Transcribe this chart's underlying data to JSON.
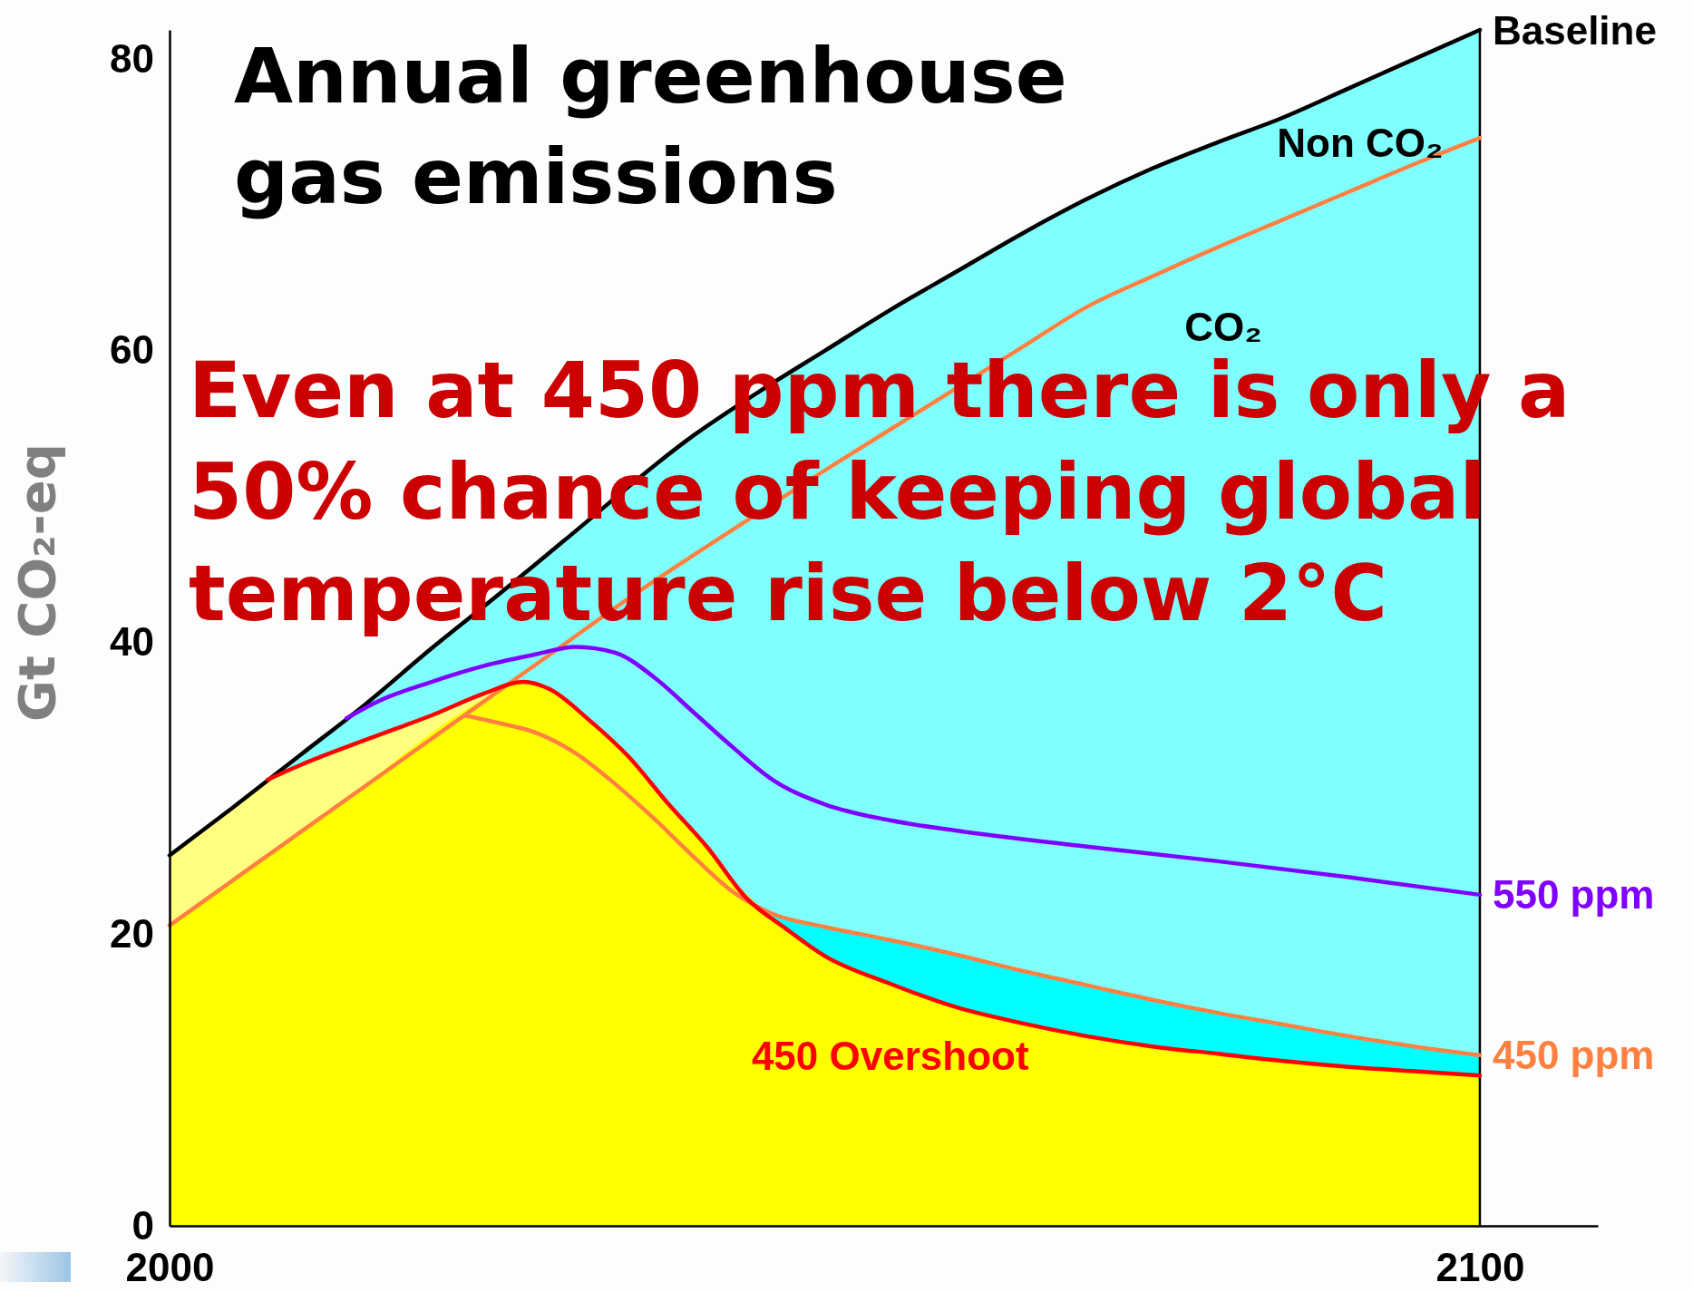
{
  "chart_data": {
    "type": "area",
    "title": "Annual greenhouse gas emissions",
    "ylabel": "Gt CO₂-eq",
    "x": [
      2000,
      2005,
      2010,
      2015,
      2020,
      2025,
      2030,
      2035,
      2040,
      2045,
      2050,
      2055,
      2060,
      2065,
      2070,
      2075,
      2080,
      2085,
      2090,
      2095,
      2100
    ],
    "xlim": [
      2000,
      2109
    ],
    "xticks": [
      2000,
      2100
    ],
    "ylim": [
      0,
      82
    ],
    "yticks": [
      0,
      20,
      40,
      60,
      80
    ],
    "series": [
      {
        "name": "Baseline",
        "color": "#80ffff",
        "x": [
          2000,
          2005,
          2010,
          2015,
          2020,
          2025,
          2030,
          2040,
          2045,
          2050,
          2055,
          2060,
          2065,
          2070,
          2075,
          2080,
          2085,
          2090,
          2095,
          2100
        ],
        "values": [
          25.4,
          28.8,
          32.3,
          35.8,
          39.6,
          43.2,
          46.9,
          54.2,
          57.2,
          60.0,
          62.8,
          65.4,
          68.0,
          70.4,
          72.5,
          74.3,
          76.0,
          78.0,
          80.0,
          82.0
        ]
      },
      {
        "color": "#00ffff",
        "x": [
          2046,
          2048,
          2052.5,
          2057.5,
          2062.5,
          2067.5,
          2072.5,
          2077.5,
          2082.5,
          2087.5,
          2092.5,
          2097.5,
          2100
        ],
        "values": [
          21.4,
          21.0,
          20.1,
          19.1,
          18.1,
          17.0,
          16.0,
          15.1,
          14.2,
          13.4,
          12.7,
          12.0,
          11.7
        ]
      },
      {
        "color": "#ffff80",
        "x": [
          2000,
          2004,
          2007.5,
          2009,
          2012,
          2015.5,
          2018.5,
          2022,
          2025.5,
          2026.5
        ],
        "values": [
          25.4,
          28.1,
          30.6,
          31.2,
          32.3,
          33.5,
          34.5,
          35.8,
          36.9,
          37.2
        ]
      },
      {
        "color": "#ffff00",
        "x": [
          2000,
          2012.5,
          2025,
          2026.5,
          2029.5,
          2031,
          2034,
          2037,
          2040,
          2043,
          2046,
          2049,
          2053,
          2058,
          2063,
          2068,
          2073,
          2078,
          2083,
          2088,
          2093,
          2098,
          2100
        ],
        "values": [
          20.6,
          28.6,
          36.6,
          37.2,
          36.5,
          35.4,
          33.0,
          30.1,
          27.0,
          23.7,
          21.1,
          19.1,
          17.4,
          15.6,
          14.3,
          13.4,
          12.6,
          12.0,
          11.5,
          11.1,
          10.7,
          10.4,
          10.3
        ]
      },
      {
        "type": "line",
        "color": "#ff8040",
        "values": [
          20.6,
          23.8,
          27.0,
          30.2,
          33.4,
          36.6,
          39.8,
          43.0,
          46.0,
          48.9,
          51.8,
          54.6,
          57.4,
          60.2,
          63.0,
          65.1,
          67.1,
          69.0,
          70.9,
          72.8,
          74.6
        ]
      },
      {
        "type": "line",
        "name": "450 ppm",
        "color": "#ff8040",
        "x": [
          2022.5,
          2025,
          2028,
          2031,
          2034,
          2037,
          2040,
          2043,
          2046,
          2050,
          2055,
          2060,
          2065,
          2070,
          2075,
          2080,
          2085,
          2090,
          2095,
          2100
        ],
        "values": [
          35.0,
          34.5,
          33.8,
          32.4,
          30.3,
          27.9,
          25.3,
          22.9,
          21.4,
          20.5,
          19.6,
          18.6,
          17.5,
          16.5,
          15.5,
          14.6,
          13.8,
          13.0,
          12.3,
          11.7
        ]
      },
      {
        "type": "line",
        "name": "550 ppm",
        "color": "#8000ff",
        "x": [
          2013.5,
          2016,
          2020,
          2024,
          2028,
          2031,
          2034,
          2037,
          2040,
          2043,
          2046,
          2050,
          2055,
          2060,
          2070,
          2080,
          2090,
          2100
        ],
        "values": [
          34.8,
          36.0,
          37.3,
          38.4,
          39.2,
          39.7,
          39.3,
          37.6,
          35.2,
          32.8,
          30.6,
          28.9,
          27.8,
          27.1,
          26.0,
          25.0,
          23.9,
          22.7
        ]
      },
      {
        "type": "line",
        "name": "450 Overshoot",
        "color": "#ff0000",
        "x": [
          2007.5,
          2010,
          2014,
          2017,
          2020,
          2024,
          2027,
          2029,
          2032,
          2035,
          2038,
          2041,
          2044,
          2047,
          2050,
          2055,
          2060,
          2065,
          2070,
          2075,
          2080,
          2085,
          2090,
          2095,
          2100
        ],
        "values": [
          30.6,
          31.6,
          33.0,
          34.0,
          35.0,
          36.5,
          37.3,
          36.8,
          34.7,
          32.2,
          29.0,
          26.0,
          22.5,
          20.4,
          18.5,
          16.6,
          15.0,
          13.9,
          13.0,
          12.3,
          11.8,
          11.3,
          10.9,
          10.6,
          10.3
        ]
      }
    ],
    "ref_lines": [
      {
        "axis": "x",
        "value": 2100,
        "color": "#000000"
      }
    ],
    "annotations": [
      "Even at 450 ppm there is only a 50% chance of keeping global temperature rise below 2°C",
      "Non CO₂",
      "CO₂"
    ]
  }
}
